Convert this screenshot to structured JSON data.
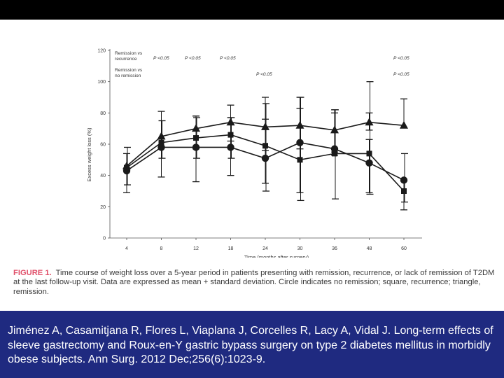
{
  "chart_data": {
    "type": "line",
    "title": "",
    "xlabel": "Time (months after surgery)",
    "ylabel": "Excess weight loss (%)",
    "categories": [
      "4",
      "8",
      "12",
      "18",
      "24",
      "30",
      "36",
      "48",
      "60"
    ],
    "ylim": [
      0,
      120
    ],
    "yticks": [
      "0",
      "20",
      "40",
      "60",
      "80",
      "100",
      "120"
    ],
    "grid": false,
    "series": [
      {
        "name": "remission",
        "marker": "triangle",
        "values": [
          46,
          65,
          70,
          74,
          71,
          72,
          69,
          74,
          72
        ],
        "sd_low": [
          null,
          null,
          57,
          62,
          56,
          57,
          55,
          69,
          null
        ],
        "sd_high": [
          null,
          null,
          78,
          85,
          90,
          90,
          80,
          80,
          89
        ]
      },
      {
        "name": "recurrence",
        "marker": "square",
        "values": [
          45,
          61,
          64,
          66,
          59,
          50,
          54,
          54,
          30
        ],
        "sd_low": [
          34,
          51,
          51,
          51,
          30,
          24,
          25,
          28,
          23
        ],
        "sd_high": [
          58,
          75,
          77,
          77,
          86,
          90,
          82,
          100,
          54
        ]
      },
      {
        "name": "no remission",
        "marker": "circle",
        "values": [
          43,
          58,
          58,
          58,
          51,
          61,
          57,
          48,
          37
        ],
        "sd_low": [
          29,
          39,
          36,
          40,
          35,
          29,
          53,
          29,
          18
        ],
        "sd_high": [
          54,
          81,
          78,
          77,
          76,
          83,
          82,
          63,
          null
        ]
      }
    ],
    "legend": {
      "remission_vs_recurrence": "Remission vs recurrence",
      "remission_vs_no_remission": "Remission vs no remission"
    },
    "pvalues_row1": [
      "P <0.05",
      "P <0.05",
      "P <0.05",
      "P <0.05"
    ],
    "pvalues_row2": [
      "P <0.05",
      "P <0.05"
    ]
  },
  "caption": {
    "lead": "FIGURE 1.",
    "text": "Time course of weight loss over a 5-year period in patients presenting with remission, recurrence, or lack of remission of T2DM at the last follow-up visit. Data are expressed as mean + standard deviation. Circle indicates no remission; square, recurrence; triangle, remission."
  },
  "citation": "Jiménez A, Casamitjana R, Flores L, Viaplana J, Corcelles R, Lacy A, Vidal J. Long-term effects of sleeve gastrectomy and Roux-en-Y gastric bypass surgery on type 2 diabetes mellitus in morbidly obese subjects. Ann Surg. 2012 Dec;256(6):1023-9.",
  "colors": {
    "top_bar": "#000000",
    "citation_bar": "#1f2a80",
    "citation_text": "#ffffff",
    "caption_lead": "#e0506a",
    "chart_ink": "#1a1a1a"
  }
}
